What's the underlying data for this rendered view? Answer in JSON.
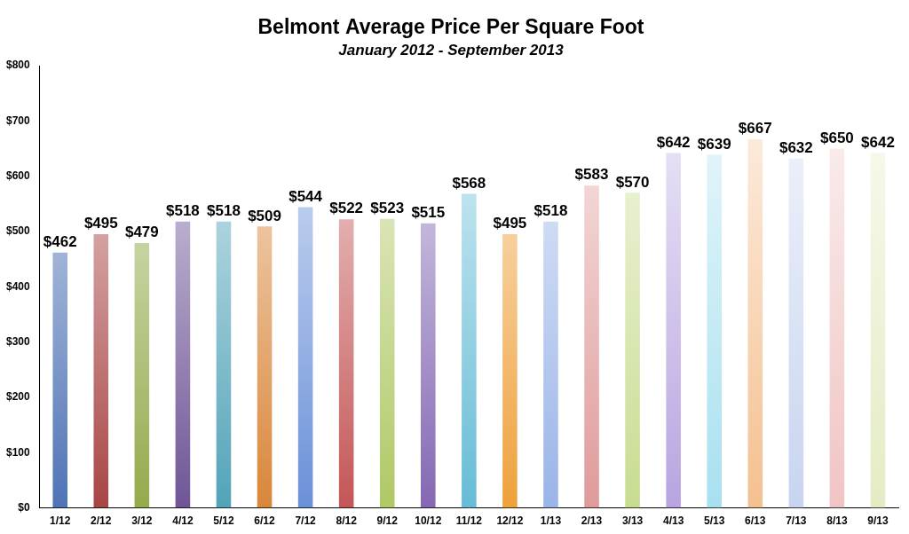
{
  "chart_data": {
    "type": "bar",
    "title": "Belmont Average Price Per Square Foot",
    "subtitle": "January 2012 - September 2013",
    "categories": [
      "1/12",
      "2/12",
      "3/12",
      "4/12",
      "5/12",
      "6/12",
      "7/12",
      "8/12",
      "9/12",
      "10/12",
      "11/12",
      "12/12",
      "1/13",
      "2/13",
      "3/13",
      "4/13",
      "5/13",
      "6/13",
      "7/13",
      "8/13",
      "9/13"
    ],
    "values": [
      462,
      495,
      479,
      518,
      518,
      509,
      544,
      522,
      523,
      515,
      568,
      495,
      518,
      583,
      570,
      642,
      639,
      667,
      632,
      650,
      642
    ],
    "value_labels": [
      "$462",
      "$495",
      "$479",
      "$518",
      "$518",
      "$509",
      "$544",
      "$522",
      "$523",
      "$515",
      "$568",
      "$495",
      "$518",
      "$583",
      "$570",
      "$642",
      "$639",
      "$667",
      "$632",
      "$650",
      "$642"
    ],
    "colors": [
      "#4f73b5",
      "#a84545",
      "#94aa4c",
      "#6f5596",
      "#53a3b8",
      "#d9863a",
      "#6a90d8",
      "#c45656",
      "#b0c865",
      "#8468b3",
      "#66bcd6",
      "#eea13c",
      "#9ab4e8",
      "#e09a9a",
      "#c8dc90",
      "#b8a4e0",
      "#a8e0f0",
      "#f4c090",
      "#c8d4f0",
      "#f0c4c4",
      "#e4ecc4"
    ],
    "ylim": [
      0,
      800
    ],
    "yticks": [
      {
        "value": 0,
        "label": "$0"
      },
      {
        "value": 100,
        "label": "$100"
      },
      {
        "value": 200,
        "label": "$200"
      },
      {
        "value": 300,
        "label": "$300"
      },
      {
        "value": 400,
        "label": "$400"
      },
      {
        "value": 500,
        "label": "$500"
      },
      {
        "value": 600,
        "label": "$600"
      },
      {
        "value": 700,
        "label": "$700"
      },
      {
        "value": 800,
        "label": "$800"
      }
    ],
    "grid": false,
    "data_labels": true
  }
}
